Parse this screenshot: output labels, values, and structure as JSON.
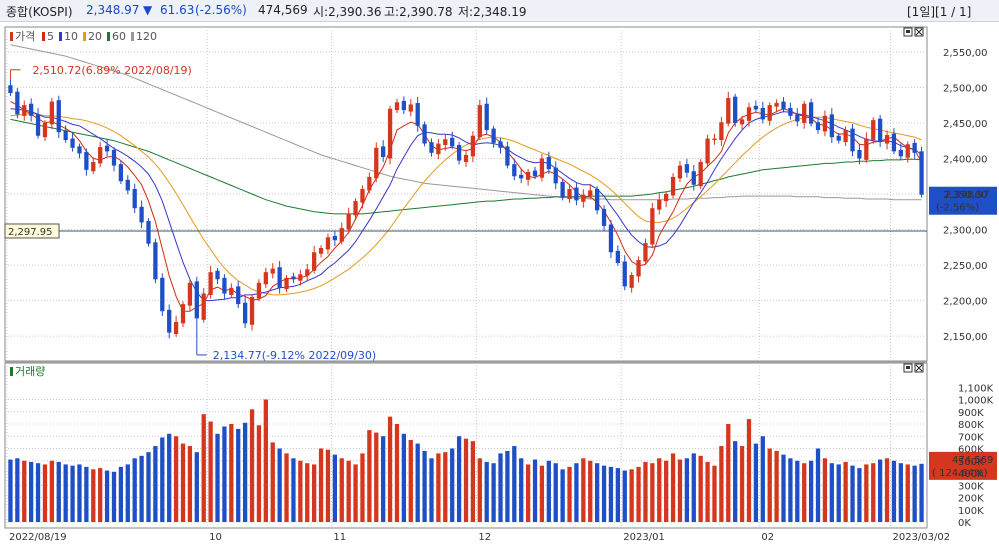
{
  "header": {
    "name": "종합(KOSPI)",
    "price": "2,348.97",
    "change_arrow": "▼",
    "change": "61.63",
    "change_pct": "(-2.56%)",
    "volume": "474,569",
    "open_label": "시:2,390.36",
    "high_label": "고:2,390.78",
    "low_label": "저:2,348.19",
    "period": "[1일][1 / 1]"
  },
  "colors": {
    "up": "#d4361e",
    "down": "#1f4fc6",
    "ma5": "#d42a14",
    "ma10": "#3737c8",
    "ma20": "#e69a1c",
    "ma60": "#1d7a2d",
    "ma120": "#999999",
    "grid": "#c9c9c9"
  },
  "chart_data": {
    "type": "candlestick",
    "price_legend": [
      {
        "label": "가격",
        "color": "#d4361e"
      },
      {
        "label": "5",
        "color": "#d42a14"
      },
      {
        "label": "10",
        "color": "#3737c8"
      },
      {
        "label": "20",
        "color": "#e69a1c"
      },
      {
        "label": "60",
        "color": "#1d7a2d"
      },
      {
        "label": "120",
        "color": "#999999"
      }
    ],
    "volume_legend": "거래량",
    "y_ticks": [
      "2,550,00",
      "2,500,00",
      "2,450,00",
      "2,400,00",
      "2,350,00",
      "2,300,00",
      "2,250,00",
      "2,200,00",
      "2,150,00"
    ],
    "y_tick_values": [
      2550,
      2500,
      2450,
      2400,
      2350,
      2300,
      2250,
      2200,
      2150
    ],
    "ylim": [
      2115,
      2585
    ],
    "vol_ticks": [
      "1,100K",
      "1,000K",
      "900K",
      "800K",
      "700K",
      "600K",
      "500K",
      "400K",
      "300K",
      "200K",
      "100K",
      "0K"
    ],
    "vol_tick_values": [
      1100,
      1000,
      900,
      800,
      700,
      600,
      500,
      400,
      300,
      200,
      100,
      0
    ],
    "vol_max": 1200,
    "x_labels": [
      {
        "index": 0,
        "text": "2022/08/19"
      },
      {
        "index": 29,
        "text": "10"
      },
      {
        "index": 47,
        "text": "11"
      },
      {
        "index": 68,
        "text": "12"
      },
      {
        "index": 89,
        "text": "2023/01"
      },
      {
        "index": 109,
        "text": "02"
      },
      {
        "index": 128,
        "text": "2023/03/02"
      }
    ],
    "reference_line": {
      "value": 2297.95,
      "label": "2,297.95"
    },
    "current_price": {
      "value": 2348.97,
      "label": "2,348.97",
      "pct": "(-2.56%)"
    },
    "current_volume": {
      "value": 474569,
      "label": "474,569",
      "pct": "( 124.64%)"
    },
    "max_annotation": {
      "index": 0,
      "value": 2510.72,
      "label": "2,510.72(6.89% 2022/08/19)"
    },
    "min_annotation": {
      "index": 27,
      "value": 2134.77,
      "label": "2,134.77(-9.12% 2022/09/30)"
    },
    "closes": [
      2492,
      2462,
      2475,
      2460,
      2432,
      2450,
      2480,
      2437,
      2426,
      2415,
      2407,
      2384,
      2395,
      2416,
      2410,
      2390,
      2368,
      2355,
      2330,
      2310,
      2280,
      2230,
      2185,
      2155,
      2170,
      2195,
      2225,
      2175,
      2210,
      2240,
      2230,
      2210,
      2218,
      2195,
      2168,
      2205,
      2225,
      2240,
      2245,
      2218,
      2232,
      2230,
      2237,
      2244,
      2268,
      2274,
      2289,
      2285,
      2302,
      2322,
      2340,
      2357,
      2374,
      2415,
      2402,
      2470,
      2479,
      2468,
      2476,
      2446,
      2421,
      2408,
      2421,
      2427,
      2417,
      2397,
      2405,
      2432,
      2475,
      2440,
      2422,
      2415,
      2390,
      2375,
      2372,
      2381,
      2375,
      2400,
      2385,
      2365,
      2345,
      2357,
      2341,
      2349,
      2355,
      2327,
      2305,
      2268,
      2253,
      2220,
      2236,
      2257,
      2281,
      2330,
      2342,
      2350,
      2374,
      2390,
      2380,
      2363,
      2395,
      2428,
      2428,
      2451,
      2485,
      2450,
      2455,
      2472,
      2469,
      2455,
      2475,
      2478,
      2469,
      2460,
      2452,
      2477,
      2449,
      2440,
      2460,
      2430,
      2425,
      2440,
      2410,
      2400,
      2428,
      2454,
      2423,
      2433,
      2410,
      2403,
      2420,
      2408,
      2349
    ],
    "volumes": [
      510,
      520,
      500,
      490,
      480,
      470,
      500,
      490,
      470,
      460,
      470,
      450,
      430,
      440,
      420,
      410,
      450,
      470,
      520,
      540,
      570,
      620,
      690,
      720,
      700,
      640,
      620,
      570,
      880,
      820,
      720,
      780,
      800,
      760,
      810,
      920,
      790,
      1000,
      650,
      600,
      560,
      520,
      500,
      480,
      470,
      600,
      590,
      550,
      520,
      500,
      470,
      560,
      750,
      730,
      700,
      860,
      800,
      720,
      670,
      640,
      580,
      520,
      560,
      570,
      600,
      700,
      680,
      660,
      520,
      490,
      480,
      560,
      580,
      620,
      520,
      470,
      510,
      460,
      500,
      480,
      430,
      450,
      480,
      520,
      500,
      480,
      460,
      450,
      440,
      420,
      430,
      450,
      490,
      480,
      520,
      500,
      560,
      510,
      520,
      560,
      540,
      490,
      460,
      620,
      800,
      660,
      620,
      840,
      640,
      700,
      600,
      580,
      550,
      520,
      500,
      480,
      500,
      600,
      520,
      480,
      470,
      490,
      460,
      440,
      470,
      480,
      510,
      520,
      500,
      480,
      470,
      460,
      475
    ],
    "ma5": [
      2480,
      2475,
      2468,
      2462,
      2456,
      2450,
      2452,
      2447,
      2442,
      2436,
      2425,
      2410,
      2400,
      2398,
      2402,
      2403,
      2397,
      2388,
      2376,
      2363,
      2340,
      2311,
      2273,
      2235,
      2206,
      2185,
      2185,
      2191,
      2196,
      2215,
      2219,
      2214,
      2216,
      2209,
      2206,
      2201,
      2202,
      2207,
      2220,
      2226,
      2231,
      2231,
      2232,
      2235,
      2244,
      2254,
      2262,
      2274,
      2284,
      2296,
      2315,
      2334,
      2356,
      2372,
      2388,
      2412,
      2440,
      2446,
      2451,
      2448,
      2434,
      2418,
      2412,
      2414,
      2416,
      2413,
      2411,
      2414,
      2432,
      2434,
      2430,
      2423,
      2409,
      2398,
      2385,
      2375,
      2373,
      2378,
      2382,
      2378,
      2371,
      2363,
      2353,
      2345,
      2346,
      2338,
      2326,
      2310,
      2292,
      2270,
      2255,
      2249,
      2251,
      2264,
      2292,
      2309,
      2325,
      2346,
      2364,
      2374,
      2379,
      2389,
      2398,
      2410,
      2436,
      2450,
      2458,
      2462,
      2465,
      2463,
      2461,
      2466,
      2470,
      2467,
      2462,
      2459,
      2457,
      2448,
      2447,
      2440,
      2434,
      2435,
      2430,
      2420,
      2419,
      2423,
      2424,
      2428,
      2430,
      2422,
      2415,
      2412,
      2395
    ],
    "ma10": [
      2470,
      2469,
      2468,
      2466,
      2462,
      2458,
      2458,
      2455,
      2452,
      2448,
      2446,
      2440,
      2434,
      2428,
      2421,
      2414,
      2409,
      2403,
      2396,
      2388,
      2378,
      2362,
      2340,
      2311,
      2282,
      2254,
      2230,
      2212,
      2200,
      2200,
      2201,
      2202,
      2204,
      2204,
      2208,
      2208,
      2210,
      2212,
      2215,
      2218,
      2219,
      2220,
      2223,
      2228,
      2232,
      2237,
      2246,
      2253,
      2262,
      2271,
      2283,
      2298,
      2313,
      2329,
      2346,
      2363,
      2385,
      2402,
      2419,
      2432,
      2437,
      2436,
      2434,
      2434,
      2433,
      2429,
      2423,
      2419,
      2421,
      2422,
      2421,
      2418,
      2413,
      2406,
      2401,
      2396,
      2394,
      2395,
      2393,
      2386,
      2379,
      2372,
      2366,
      2363,
      2363,
      2357,
      2347,
      2333,
      2320,
      2305,
      2292,
      2283,
      2276,
      2275,
      2277,
      2281,
      2292,
      2306,
      2322,
      2338,
      2352,
      2367,
      2384,
      2400,
      2414,
      2428,
      2440,
      2450,
      2455,
      2458,
      2460,
      2463,
      2466,
      2465,
      2463,
      2461,
      2459,
      2456,
      2453,
      2449,
      2444,
      2440,
      2436,
      2431,
      2427,
      2425,
      2424,
      2425,
      2423,
      2418,
      2415,
      2413,
      2405
    ],
    "ma20": [
      2460,
      2461,
      2462,
      2463,
      2462,
      2460,
      2460,
      2459,
      2458,
      2456,
      2455,
      2453,
      2450,
      2447,
      2443,
      2438,
      2432,
      2425,
      2418,
      2410,
      2402,
      2392,
      2380,
      2366,
      2351,
      2335,
      2318,
      2302,
      2286,
      2272,
      2258,
      2246,
      2236,
      2228,
      2222,
      2216,
      2212,
      2210,
      2208,
      2208,
      2209,
      2210,
      2212,
      2214,
      2217,
      2221,
      2226,
      2232,
      2238,
      2244,
      2252,
      2260,
      2269,
      2279,
      2290,
      2302,
      2316,
      2330,
      2343,
      2356,
      2368,
      2379,
      2389,
      2398,
      2406,
      2413,
      2419,
      2423,
      2427,
      2429,
      2430,
      2429,
      2427,
      2424,
      2420,
      2416,
      2412,
      2408,
      2404,
      2400,
      2396,
      2392,
      2387,
      2382,
      2377,
      2371,
      2364,
      2356,
      2347,
      2337,
      2327,
      2318,
      2312,
      2310,
      2310,
      2312,
      2316,
      2322,
      2330,
      2338,
      2346,
      2355,
      2364,
      2374,
      2384,
      2394,
      2404,
      2413,
      2422,
      2430,
      2437,
      2443,
      2448,
      2452,
      2455,
      2457,
      2458,
      2458,
      2458,
      2456,
      2454,
      2452,
      2450,
      2447,
      2444,
      2442,
      2440,
      2438,
      2436,
      2434,
      2432,
      2430,
      2426
    ],
    "ma60": [
      2455,
      2453,
      2451,
      2449,
      2447,
      2445,
      2443,
      2441,
      2439,
      2437,
      2435,
      2433,
      2431,
      2429,
      2427,
      2425,
      2422,
      2419,
      2416,
      2413,
      2410,
      2406,
      2402,
      2398,
      2394,
      2390,
      2386,
      2382,
      2378,
      2374,
      2370,
      2366,
      2362,
      2358,
      2354,
      2350,
      2346,
      2342,
      2339,
      2336,
      2333,
      2331,
      2329,
      2327,
      2325,
      2324,
      2323,
      2322,
      2322,
      2322,
      2322,
      2322,
      2323,
      2324,
      2325,
      2326,
      2327,
      2328,
      2329,
      2330,
      2331,
      2332,
      2333,
      2334,
      2335,
      2336,
      2337,
      2338,
      2339,
      2340,
      2340,
      2341,
      2342,
      2343,
      2343,
      2344,
      2344,
      2345,
      2345,
      2346,
      2346,
      2346,
      2346,
      2346,
      2347,
      2347,
      2347,
      2347,
      2347,
      2347,
      2347,
      2348,
      2349,
      2350,
      2352,
      2353,
      2355,
      2357,
      2359,
      2361,
      2364,
      2366,
      2369,
      2371,
      2374,
      2376,
      2378,
      2380,
      2382,
      2384,
      2385,
      2386,
      2387,
      2388,
      2389,
      2390,
      2391,
      2392,
      2393,
      2393,
      2394,
      2395,
      2395,
      2396,
      2396,
      2397,
      2397,
      2398,
      2398,
      2398,
      2399,
      2399,
      2398
    ],
    "ma120": [
      2560,
      2558,
      2556,
      2554,
      2552,
      2550,
      2548,
      2546,
      2544,
      2541,
      2538,
      2535,
      2532,
      2529,
      2526,
      2523,
      2520,
      2517,
      2513,
      2509,
      2505,
      2501,
      2497,
      2493,
      2489,
      2485,
      2481,
      2477,
      2473,
      2469,
      2465,
      2461,
      2457,
      2453,
      2449,
      2445,
      2441,
      2437,
      2433,
      2429,
      2425,
      2421,
      2417,
      2413,
      2409,
      2405,
      2402,
      2399,
      2396,
      2393,
      2390,
      2387,
      2384,
      2381,
      2378,
      2375,
      2373,
      2371,
      2369,
      2367,
      2365,
      2364,
      2363,
      2362,
      2361,
      2360,
      2359,
      2358,
      2357,
      2356,
      2355,
      2354,
      2353,
      2352,
      2351,
      2350,
      2349,
      2348,
      2347,
      2346,
      2345,
      2345,
      2344,
      2344,
      2343,
      2343,
      2343,
      2342,
      2342,
      2342,
      2342,
      2342,
      2342,
      2342,
      2342,
      2342,
      2343,
      2343,
      2343,
      2344,
      2344,
      2344,
      2345,
      2345,
      2346,
      2346,
      2347,
      2347,
      2347,
      2347,
      2347,
      2347,
      2347,
      2347,
      2346,
      2346,
      2346,
      2346,
      2345,
      2345,
      2345,
      2344,
      2344,
      2344,
      2343,
      2343,
      2343,
      2343,
      2342,
      2342,
      2342,
      2342,
      2342
    ]
  }
}
